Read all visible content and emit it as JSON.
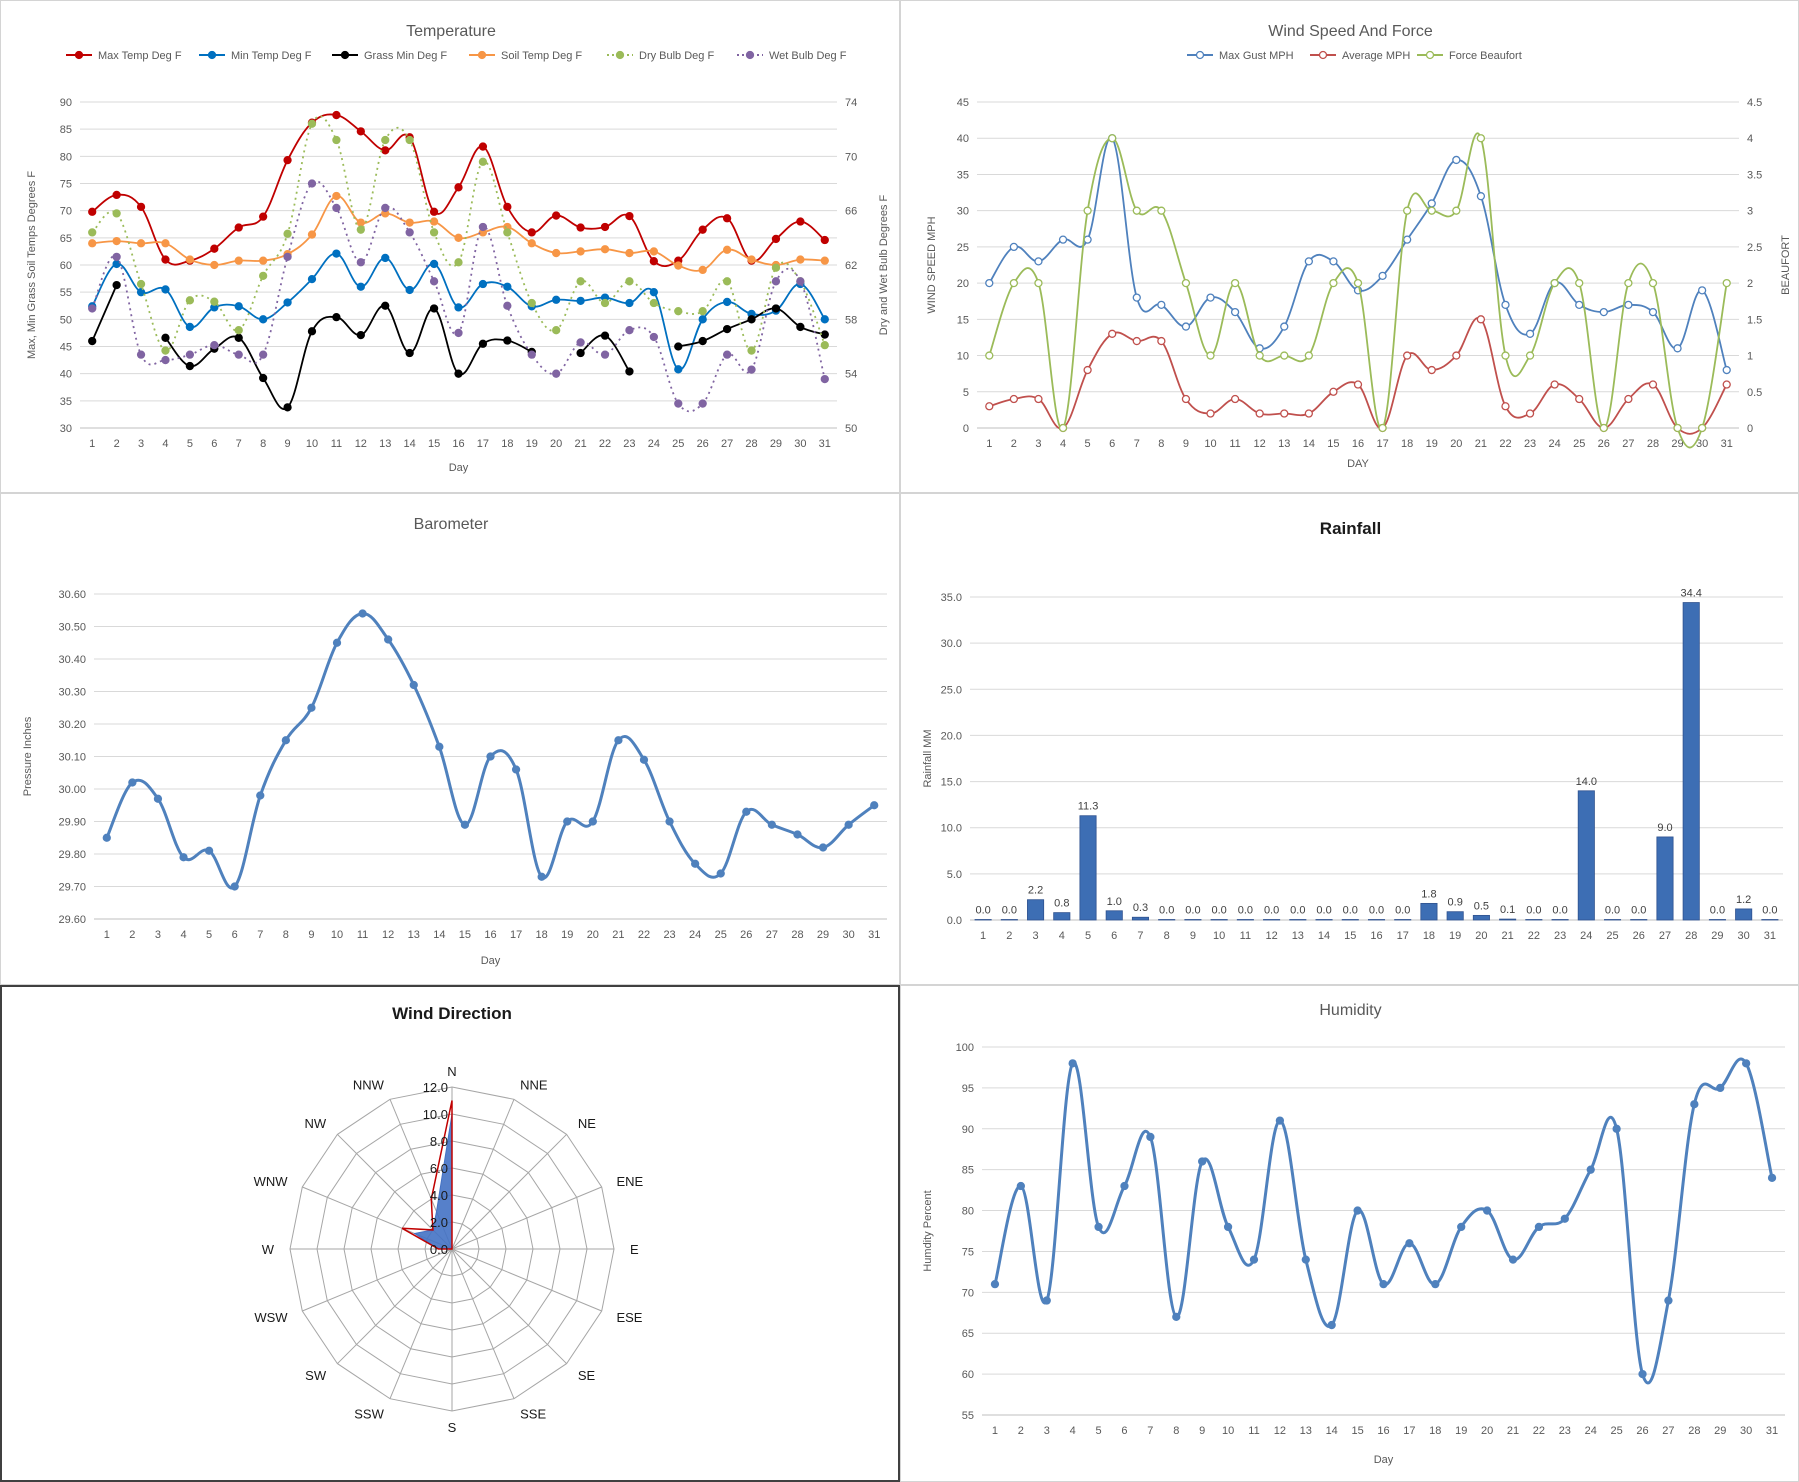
{
  "colors": {
    "max_temp": "#C00000",
    "min_temp": "#0070C0",
    "grass_min": "#000000",
    "soil_temp": "#F79646",
    "dry_bulb": "#9BBB59",
    "wet_bulb": "#8064A2",
    "gust": "#4F81BD",
    "average": "#C0504D",
    "beaufort": "#9BBB59",
    "barometer": "#4F81BD",
    "rain_bar": "#3D6EB4",
    "humidity": "#4F81BD",
    "grid": "#D9D9D9",
    "radar_grid": "#A6A6A6",
    "radar_fill": "#4472C4",
    "radar_line": "#C00000"
  },
  "chart_data": [
    {
      "id": "temperature",
      "type": "line",
      "title": "Temperature",
      "xlabel": "Day",
      "ylabel": "Max, Min Grass Soil Temps Degrees F",
      "y2label": "Dry and Wet Bulb Degrees F",
      "ylim": [
        30,
        90
      ],
      "yticks": [
        30,
        35,
        40,
        45,
        50,
        55,
        60,
        65,
        70,
        75,
        80,
        85,
        90
      ],
      "y2lim": [
        50,
        74
      ],
      "y2ticks": [
        50,
        54,
        58,
        62,
        66,
        70,
        74
      ],
      "legend_position": "top",
      "categories": [
        "1",
        "2",
        "3",
        "4",
        "5",
        "6",
        "7",
        "8",
        "9",
        "10",
        "11",
        "12",
        "13",
        "14",
        "15",
        "16",
        "17",
        "18",
        "19",
        "20",
        "21",
        "22",
        "23",
        "24",
        "25",
        "26",
        "27",
        "28",
        "29",
        "30",
        "31"
      ],
      "series": [
        {
          "name": "Max Temp Deg F",
          "color_key": "max_temp",
          "axis": "left",
          "dash": false,
          "values": [
            69.8,
            72.9,
            70.7,
            61,
            60.8,
            63,
            66.9,
            68.9,
            79.3,
            86.2,
            87.6,
            84.6,
            81.1,
            83.5,
            69.8,
            74.3,
            81.8,
            70.7,
            66,
            69.1,
            66.9,
            67,
            69,
            60.7,
            60.8,
            66.5,
            68.6,
            60.8,
            64.8,
            68,
            64.6
          ]
        },
        {
          "name": "Min Temp Deg F",
          "color_key": "min_temp",
          "axis": "left",
          "dash": false,
          "values": [
            52.4,
            60.2,
            55,
            55.5,
            48.6,
            52.2,
            52.4,
            50,
            53.1,
            57.4,
            62.1,
            56,
            61.3,
            55.4,
            60.2,
            52.2,
            56.5,
            56,
            52.4,
            53.6,
            53.4,
            54,
            53,
            55,
            40.8,
            50,
            53.2,
            51,
            51.6,
            56.5,
            50
          ]
        },
        {
          "name": "Grass Min Deg F",
          "color_key": "grass_min",
          "axis": "left",
          "dash": false,
          "values": [
            46,
            56.3,
            null,
            46.6,
            41.4,
            44.6,
            46.6,
            39.2,
            33.8,
            47.8,
            50.4,
            47.1,
            52.5,
            43.8,
            52,
            40,
            45.5,
            46.1,
            44,
            null,
            43.8,
            47,
            40.4,
            null,
            45,
            46,
            48.2,
            50,
            52,
            48.6,
            47.2
          ]
        },
        {
          "name": "Soil Temp Deg F",
          "color_key": "soil_temp",
          "axis": "left",
          "dash": false,
          "values": [
            64,
            64.4,
            64,
            64,
            61,
            60,
            60.8,
            60.8,
            62,
            65.6,
            72.7,
            67.8,
            69.5,
            67.8,
            68,
            65,
            66,
            67,
            64,
            62.2,
            62.5,
            62.9,
            62.2,
            62.5,
            59.9,
            59.1,
            62.8,
            61,
            60,
            61,
            60.8
          ]
        },
        {
          "name": "Dry Bulb Deg F",
          "color_key": "dry_bulb",
          "axis": "right",
          "dash": true,
          "values": [
            64.4,
            65.8,
            60.6,
            55.7,
            59.4,
            59.3,
            57.2,
            61.2,
            64.3,
            72.4,
            71.2,
            64.6,
            71.2,
            71.2,
            64.4,
            62.2,
            69.6,
            64.4,
            59.2,
            57.2,
            60.8,
            59.2,
            60.8,
            59.2,
            58.6,
            58.6,
            60.8,
            55.7,
            61.8,
            60.8,
            56.1
          ]
        },
        {
          "name": "Wet Bulb Deg F",
          "color_key": "wet_bulb",
          "axis": "right",
          "dash": true,
          "values": [
            58.8,
            62.6,
            55.4,
            55,
            55.4,
            56.1,
            55.4,
            55.4,
            62.6,
            68,
            66.2,
            62.2,
            66.2,
            64.4,
            60.8,
            57,
            64.8,
            59,
            55.4,
            54,
            56.3,
            55.4,
            57.2,
            56.7,
            51.8,
            51.8,
            55.4,
            54.3,
            60.8,
            60.8,
            53.6
          ]
        }
      ]
    },
    {
      "id": "wind",
      "type": "line",
      "title": "Wind Speed And Force",
      "xlabel": "DAY",
      "ylabel": "WIND SPEED MPH",
      "y2label": "BEAUFORT",
      "ylim": [
        0,
        45
      ],
      "yticks": [
        0,
        5,
        10,
        15,
        20,
        25,
        30,
        35,
        40,
        45
      ],
      "y2lim": [
        0,
        4.5
      ],
      "y2ticks": [
        "0",
        "0.5",
        "1",
        "1.5",
        "2",
        "2.5",
        "3",
        "3.5",
        "4",
        "4.5"
      ],
      "legend_position": "top",
      "categories": [
        "1",
        "2",
        "3",
        "4",
        "5",
        "6",
        "7",
        "8",
        "9",
        "10",
        "11",
        "12",
        "13",
        "14",
        "15",
        "16",
        "17",
        "18",
        "19",
        "20",
        "21",
        "22",
        "23",
        "24",
        "25",
        "26",
        "27",
        "28",
        "29",
        "30",
        "31"
      ],
      "series": [
        {
          "name": "Max Gust MPH",
          "color_key": "gust",
          "axis": "left",
          "values": [
            20,
            25,
            23,
            26,
            26,
            40,
            18,
            17,
            14,
            18,
            16,
            11,
            14,
            23,
            23,
            19,
            21,
            26,
            31,
            37,
            32,
            17,
            13,
            20,
            17,
            16,
            17,
            16,
            11,
            19,
            8
          ]
        },
        {
          "name": "Average MPH",
          "color_key": "average",
          "axis": "left",
          "values": [
            3,
            4,
            4,
            0,
            8,
            13,
            12,
            12,
            4,
            2,
            4,
            2,
            2,
            2,
            5,
            6,
            0,
            10,
            8,
            10,
            15,
            3,
            2,
            6,
            4,
            0,
            4,
            6,
            0,
            0,
            6
          ]
        },
        {
          "name": "Force Beaufort",
          "color_key": "beaufort",
          "axis": "right",
          "values": [
            1,
            2,
            2,
            0,
            3,
            4,
            3,
            3,
            2,
            1,
            2,
            1,
            1,
            1,
            2,
            2,
            0,
            3,
            3,
            3,
            4,
            1,
            1,
            2,
            2,
            0,
            2,
            2,
            0,
            0,
            2
          ]
        }
      ]
    },
    {
      "id": "barometer",
      "type": "line",
      "title": "Barometer",
      "xlabel": "Day",
      "ylabel": "Pressure Inches",
      "ylim": [
        29.6,
        30.6
      ],
      "yticks": [
        "29.60",
        "29.70",
        "29.80",
        "29.90",
        "30.00",
        "30.10",
        "30.20",
        "30.30",
        "30.40",
        "30.50",
        "30.60"
      ],
      "categories": [
        "1",
        "2",
        "3",
        "4",
        "5",
        "6",
        "7",
        "8",
        "9",
        "10",
        "11",
        "12",
        "13",
        "14",
        "15",
        "16",
        "17",
        "18",
        "19",
        "20",
        "21",
        "22",
        "23",
        "24",
        "25",
        "26",
        "27",
        "28",
        "29",
        "30",
        "31"
      ],
      "series": [
        {
          "name": "",
          "color_key": "barometer",
          "values": [
            29.85,
            30.02,
            29.97,
            29.79,
            29.81,
            29.7,
            29.98,
            30.15,
            30.25,
            30.45,
            30.54,
            30.46,
            30.32,
            30.13,
            29.89,
            30.1,
            30.06,
            29.73,
            29.9,
            29.9,
            30.15,
            30.09,
            29.9,
            29.77,
            29.74,
            29.93,
            29.89,
            29.86,
            29.82,
            29.89,
            29.95
          ]
        }
      ]
    },
    {
      "id": "rainfall",
      "type": "bar",
      "title": "Rainfall",
      "xlabel": "",
      "ylabel": "Rainfall MM",
      "ylim": [
        0,
        35
      ],
      "yticks": [
        "0.0",
        "5.0",
        "10.0",
        "15.0",
        "20.0",
        "25.0",
        "30.0",
        "35.0"
      ],
      "categories": [
        "1",
        "2",
        "3",
        "4",
        "5",
        "6",
        "7",
        "8",
        "9",
        "10",
        "11",
        "12",
        "13",
        "14",
        "15",
        "16",
        "17",
        "18",
        "19",
        "20",
        "21",
        "22",
        "23",
        "24",
        "25",
        "26",
        "27",
        "28",
        "29",
        "30",
        "31"
      ],
      "values": [
        0,
        0,
        2.2,
        0.8,
        11.3,
        1,
        0.3,
        0,
        0,
        0,
        0,
        0,
        0,
        0,
        0,
        0,
        0,
        1.8,
        0.9,
        0.5,
        0.1,
        0,
        0,
        14,
        0,
        0,
        9,
        34.4,
        0,
        1.2,
        0
      ],
      "data_labels": [
        "0.0",
        "0.0",
        "2.2",
        "0.8",
        "11.3",
        "1.0",
        "0.3",
        "0.0",
        "0.0",
        "0.0",
        "0.0",
        "0.0",
        "0.0",
        "0.0",
        "0.0",
        "0.0",
        "0.0",
        "1.8",
        "0.9",
        "0.5",
        "0.1",
        "0.0",
        "0.0",
        "14.0",
        "0.0",
        "0.0",
        "9.0",
        "34.4",
        "0.0",
        "1.2",
        "0.0"
      ]
    },
    {
      "id": "wind_direction",
      "type": "radar",
      "title": "Wind Direction",
      "directions": [
        "N",
        "NNE",
        "NE",
        "ENE",
        "E",
        "ESE",
        "SE",
        "SSE",
        "S",
        "SSW",
        "SW",
        "WSW",
        "W",
        "WNW",
        "NW",
        "NNW"
      ],
      "rlim": [
        0,
        12
      ],
      "rticks": [
        "0.0",
        "2.0",
        "4.0",
        "6.0",
        "8.0",
        "10.0",
        "12.0"
      ],
      "series": [
        {
          "name": "",
          "color_key": "radar_fill",
          "filled": true,
          "values": [
            10,
            0,
            0,
            0,
            0,
            0,
            0,
            0,
            0,
            0,
            0,
            0,
            1,
            3,
            2,
            3
          ]
        },
        {
          "name": "",
          "color_key": "radar_line",
          "filled": false,
          "values": [
            11,
            0,
            0,
            0,
            0,
            0,
            0,
            0,
            0,
            0,
            0,
            0,
            1,
            4,
            2,
            4
          ]
        }
      ]
    },
    {
      "id": "humidity",
      "type": "line",
      "title": "Humidity",
      "xlabel": "Day",
      "ylabel": "Humdity Percent",
      "ylim": [
        55,
        100
      ],
      "yticks": [
        55,
        60,
        65,
        70,
        75,
        80,
        85,
        90,
        95,
        100
      ],
      "categories": [
        "1",
        "2",
        "3",
        "4",
        "5",
        "6",
        "7",
        "8",
        "9",
        "10",
        "11",
        "12",
        "13",
        "14",
        "15",
        "16",
        "17",
        "18",
        "19",
        "20",
        "21",
        "22",
        "23",
        "24",
        "25",
        "26",
        "27",
        "28",
        "29",
        "30",
        "31"
      ],
      "series": [
        {
          "name": "",
          "color_key": "humidity",
          "values": [
            71,
            83,
            69,
            98,
            78,
            83,
            89,
            67,
            86,
            78,
            74,
            91,
            74,
            66,
            80,
            71,
            76,
            71,
            78,
            80,
            74,
            78,
            79,
            85,
            90,
            60,
            69,
            93,
            95,
            98,
            84
          ]
        }
      ]
    }
  ]
}
